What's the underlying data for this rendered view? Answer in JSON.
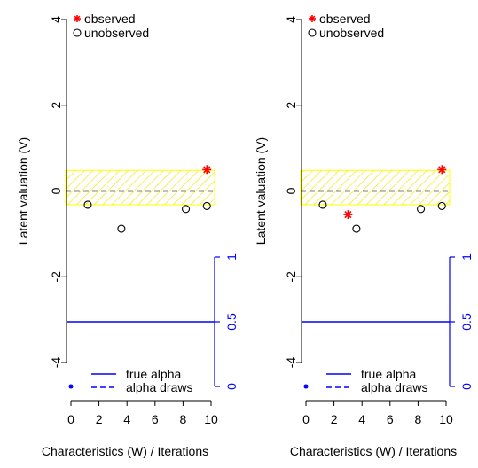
{
  "chart_data": [
    {
      "type": "scatter",
      "panel": "left",
      "ylabel": "Latent valuation (V)",
      "xlabel": "Characteristics (W) / Iterations",
      "xlim": [
        0,
        10
      ],
      "ylim": [
        -4,
        4
      ],
      "x_ticks": [
        "0",
        "2",
        "4",
        "6",
        "8",
        "10"
      ],
      "y_ticks": [
        "-4",
        "-2",
        "0",
        "2",
        "4"
      ],
      "series": [
        {
          "name": "observed",
          "marker": "*",
          "color": "#ff0000",
          "points": [
            [
              9.7,
              0.5
            ]
          ]
        },
        {
          "name": "unobserved",
          "marker": "o",
          "color": "#000000",
          "points": [
            [
              1.2,
              -0.32
            ],
            [
              3.6,
              -0.88
            ],
            [
              8.2,
              -0.42
            ],
            [
              9.7,
              -0.35
            ]
          ]
        },
        {
          "name": "true alpha",
          "line": "solid",
          "color": "#0000ff",
          "value": 0.5
        },
        {
          "name": "alpha draws",
          "line": "dashed",
          "color": "#0000ff",
          "values": []
        }
      ],
      "true_value_line": {
        "y": 0,
        "style": "dashed",
        "color": "#000000"
      },
      "band": {
        "y_low": -0.32,
        "y_high": 0.48,
        "color": "#ffff00",
        "hatched": true
      },
      "secondary_axis": {
        "side": "right",
        "color": "#0000ff",
        "ylim": [
          0,
          1
        ],
        "ticks": [
          "0",
          "0.5",
          "1"
        ]
      },
      "legends": [
        {
          "placement": "top-left",
          "entries": [
            "observed",
            "unobserved"
          ]
        },
        {
          "placement": "bottom",
          "entries": [
            "true alpha",
            "alpha draws"
          ]
        }
      ],
      "grid": false
    },
    {
      "type": "scatter",
      "panel": "right",
      "ylabel": "Latent valuation (V)",
      "xlabel": "Characteristics (W) / Iterations",
      "xlim": [
        0,
        10
      ],
      "ylim": [
        -4,
        4
      ],
      "x_ticks": [
        "0",
        "2",
        "4",
        "6",
        "8",
        "10"
      ],
      "y_ticks": [
        "-4",
        "-2",
        "0",
        "2",
        "4"
      ],
      "series": [
        {
          "name": "observed",
          "marker": "*",
          "color": "#ff0000",
          "points": [
            [
              9.7,
              0.5
            ],
            [
              3.0,
              -0.55
            ]
          ]
        },
        {
          "name": "unobserved",
          "marker": "o",
          "color": "#000000",
          "points": [
            [
              1.2,
              -0.32
            ],
            [
              3.6,
              -0.88
            ],
            [
              8.2,
              -0.42
            ],
            [
              9.7,
              -0.35
            ]
          ]
        },
        {
          "name": "true alpha",
          "line": "solid",
          "color": "#0000ff",
          "value": 0.5
        },
        {
          "name": "alpha draws",
          "line": "dashed",
          "color": "#0000ff",
          "values": []
        }
      ],
      "true_value_line": {
        "y": 0,
        "style": "dashed",
        "color": "#000000"
      },
      "band": {
        "y_low": -0.32,
        "y_high": 0.48,
        "color": "#ffff00",
        "hatched": true
      },
      "secondary_axis": {
        "side": "right",
        "color": "#0000ff",
        "ylim": [
          0,
          1
        ],
        "ticks": [
          "0",
          "0.5",
          "1"
        ]
      },
      "legends": [
        {
          "placement": "top-left",
          "entries": [
            "observed",
            "unobserved"
          ]
        },
        {
          "placement": "bottom",
          "entries": [
            "true alpha",
            "alpha draws"
          ]
        }
      ],
      "grid": false
    }
  ]
}
